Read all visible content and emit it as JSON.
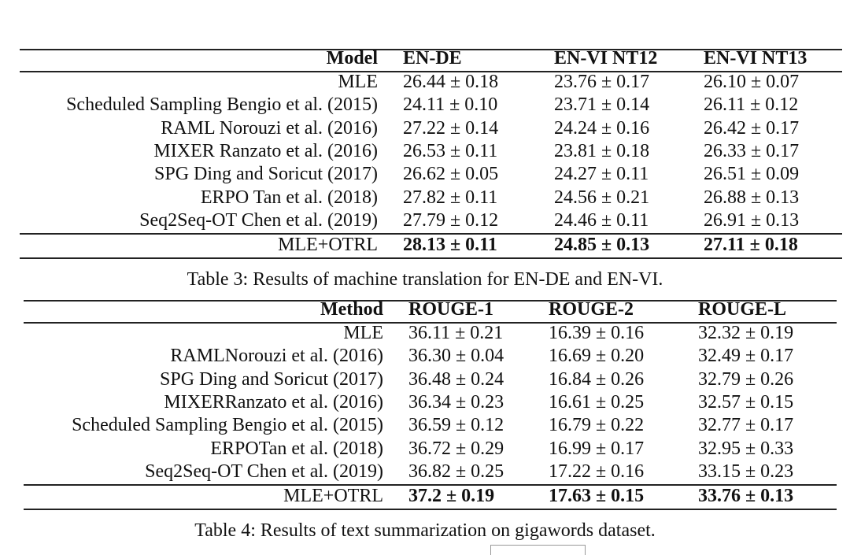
{
  "table3": {
    "header": [
      "Model",
      "EN-DE",
      "EN-VI NT12",
      "EN-VI NT13"
    ],
    "rows": [
      [
        "MLE",
        "26.44 ± 0.18",
        "23.76 ± 0.17",
        "26.10 ± 0.07"
      ],
      [
        "Scheduled Sampling Bengio et al. (2015)",
        "24.11 ± 0.10",
        "23.71 ± 0.14",
        "26.11 ± 0.12"
      ],
      [
        "RAML Norouzi et al. (2016)",
        "27.22 ± 0.14",
        "24.24 ± 0.16",
        "26.42 ± 0.17"
      ],
      [
        "MIXER Ranzato et al. (2016)",
        "26.53 ± 0.11",
        "23.81 ± 0.18",
        "26.33 ± 0.17"
      ],
      [
        "SPG Ding and Soricut (2017)",
        "26.62 ± 0.05",
        "24.27 ± 0.11",
        "26.51 ± 0.09"
      ],
      [
        "ERPO Tan et al. (2018)",
        "27.82 ± 0.11",
        "24.56 ± 0.21",
        "26.88 ± 0.13"
      ],
      [
        "Seq2Seq-OT Chen et al. (2019)",
        "27.79 ± 0.12",
        "24.46 ± 0.11",
        "26.91 ± 0.13"
      ]
    ],
    "best": [
      "MLE+OTRL",
      "28.13 ± 0.11",
      "24.85 ± 0.13",
      "27.11 ± 0.18"
    ],
    "caption": "Table 3: Results of machine translation for EN-DE and EN-VI."
  },
  "table4": {
    "header": [
      "Method",
      "ROUGE-1",
      "ROUGE-2",
      "ROUGE-L"
    ],
    "rows": [
      [
        "MLE",
        "36.11 ± 0.21",
        "16.39 ± 0.16",
        "32.32 ± 0.19"
      ],
      [
        "RAMLNorouzi et al. (2016)",
        "36.30 ± 0.04",
        "16.69 ± 0.20",
        "32.49 ± 0.17"
      ],
      [
        "SPG Ding and Soricut (2017)",
        "36.48 ± 0.24",
        "16.84 ± 0.26",
        "32.79 ± 0.26"
      ],
      [
        "MIXERRanzato et al. (2016)",
        "36.34 ± 0.23",
        "16.61 ± 0.25",
        "32.57 ± 0.15"
      ],
      [
        "Scheduled Sampling Bengio et al. (2015)",
        "36.59 ± 0.12",
        "16.79 ± 0.22",
        "32.77 ± 0.17"
      ],
      [
        "ERPOTan et al. (2018)",
        "36.72 ± 0.29",
        "16.99 ± 0.17",
        "32.95 ± 0.33"
      ],
      [
        "Seq2Seq-OT Chen et al. (2019)",
        "36.82 ± 0.25",
        "17.22 ± 0.16",
        "33.15 ± 0.23"
      ]
    ],
    "best": [
      "MLE+OTRL",
      "37.2 ± 0.19",
      "17.63 ± 0.15",
      "33.76 ± 0.13"
    ],
    "caption": "Table 4: Results of text summarization on gigawords dataset."
  }
}
